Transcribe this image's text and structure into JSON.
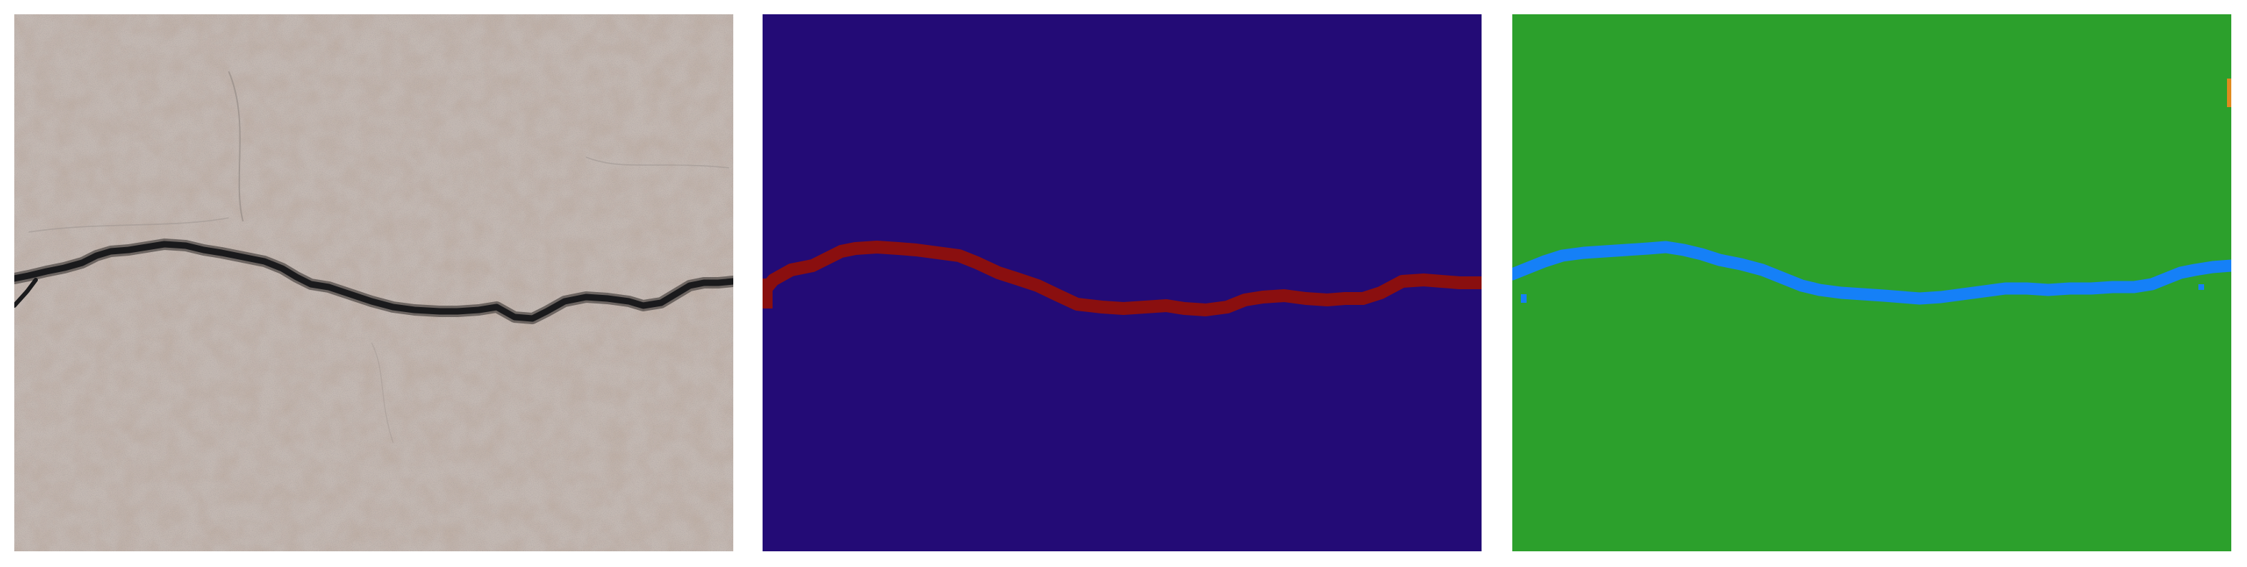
{
  "panels": [
    {
      "id": "photo",
      "content": "concrete-surface-photo",
      "colors": {
        "surface": "#c4b9b3",
        "surface_light": "#d6cec8",
        "surface_dark": "#a89c95",
        "crack": "#1a1a1c",
        "crack_edge": "#4a4442"
      }
    },
    {
      "id": "ground-truth",
      "content": "crack-segmentation-mask",
      "colors": {
        "background": "#230b76",
        "crack": "#8a0f0f"
      }
    },
    {
      "id": "prediction",
      "content": "crack-segmentation-prediction",
      "colors": {
        "background": "#2ca02c",
        "crack": "#1580f7",
        "speck": "#e08a1e"
      }
    }
  ]
}
